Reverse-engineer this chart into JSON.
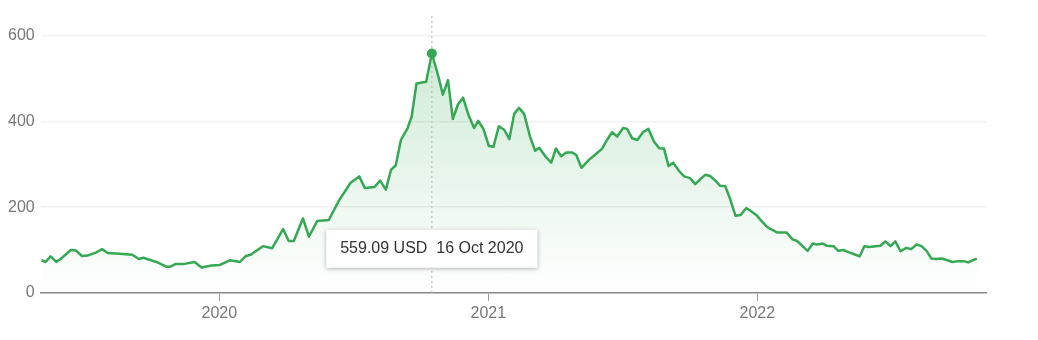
{
  "chart_data": {
    "type": "area",
    "x": [
      2019.339,
      2019.354,
      2019.373,
      2019.394,
      2019.41,
      2019.448,
      2019.467,
      2019.489,
      2019.51,
      2019.541,
      2019.564,
      2019.585,
      2019.616,
      2019.676,
      2019.701,
      2019.717,
      2019.766,
      2019.803,
      2019.818,
      2019.837,
      2019.865,
      2019.908,
      2019.934,
      2019.971,
      2020.002,
      2020.039,
      2020.077,
      2020.099,
      2020.117,
      2020.162,
      2020.196,
      2020.237,
      2020.258,
      2020.277,
      2020.311,
      2020.333,
      2020.364,
      2020.407,
      2020.445,
      2020.488,
      2020.52,
      2020.541,
      2020.576,
      2020.598,
      2020.619,
      2020.638,
      2020.656,
      2020.675,
      2020.7,
      2020.715,
      2020.733,
      2020.769,
      2020.79,
      2020.812,
      2020.831,
      2020.85,
      2020.868,
      2020.887,
      2020.906,
      2020.927,
      2020.947,
      2020.962,
      2020.981,
      2021.002,
      2021.019,
      2021.039,
      2021.059,
      2021.078,
      2021.096,
      2021.114,
      2021.133,
      2021.155,
      2021.174,
      2021.189,
      2021.213,
      2021.234,
      2021.251,
      2021.271,
      2021.29,
      2021.311,
      2021.327,
      2021.346,
      2021.373,
      2021.398,
      2021.423,
      2021.441,
      2021.46,
      2021.479,
      2021.501,
      2021.516,
      2021.535,
      2021.554,
      2021.575,
      2021.595,
      2021.616,
      2021.635,
      2021.653,
      2021.67,
      2021.687,
      2021.71,
      2021.728,
      2021.75,
      2021.769,
      2021.787,
      2021.807,
      2021.824,
      2021.844,
      2021.862,
      2021.881,
      2021.899,
      2021.919,
      2021.938,
      2021.959,
      2021.978,
      2021.996,
      2022.015,
      2022.036,
      2022.052,
      2022.073,
      2022.108,
      2022.131,
      2022.148,
      2022.168,
      2022.187,
      2022.206,
      2022.223,
      2022.243,
      2022.258,
      2022.283,
      2022.301,
      2022.32,
      2022.339,
      2022.36,
      2022.38,
      2022.398,
      2022.417,
      2022.439,
      2022.457,
      2022.476,
      2022.495,
      2022.513,
      2022.532,
      2022.554,
      2022.572,
      2022.592,
      2022.61,
      2022.629,
      2022.647,
      2022.664,
      2022.685,
      2022.707,
      2022.725,
      2022.746,
      2022.766,
      2022.784,
      2022.8,
      2022.816
    ],
    "series": [
      {
        "color": "#34a853",
        "values": [
          76,
          72,
          85,
          72,
          79,
          100,
          99,
          86,
          87,
          94,
          102,
          93,
          92,
          89,
          79,
          82,
          72,
          61,
          61,
          67,
          67,
          72,
          59,
          64,
          65,
          76,
          72,
          86,
          89,
          109,
          104,
          149,
          121,
          121,
          174,
          131,
          168,
          170,
          216,
          257,
          272,
          245,
          247,
          262,
          241,
          287,
          298,
          357,
          385,
          412,
          489,
          493,
          559.09,
          511,
          463,
          497,
          406,
          440,
          456,
          414,
          385,
          402,
          384,
          343,
          341,
          389,
          381,
          359,
          418,
          432,
          418,
          365,
          332,
          339,
          318,
          304,
          337,
          319,
          328,
          328,
          322,
          292,
          310,
          323,
          337,
          357,
          375,
          365,
          385,
          383,
          361,
          357,
          375,
          383,
          353,
          338,
          337,
          296,
          304,
          284,
          272,
          268,
          254,
          265,
          276,
          273,
          262,
          250,
          249,
          219,
          180,
          182,
          198,
          190,
          182,
          168,
          154,
          148,
          141,
          141,
          125,
          121,
          109,
          98,
          115,
          113,
          115,
          110,
          109,
          98,
          100,
          95,
          90,
          85,
          109,
          107,
          109,
          110,
          120,
          109,
          120,
          97,
          105,
          102,
          113,
          109,
          98,
          80,
          79,
          80,
          76,
          72,
          74,
          74,
          71,
          76,
          80
        ]
      }
    ],
    "xlim": [
      2019.336,
      2022.85
    ],
    "xticks": [
      2020,
      2021,
      2022
    ],
    "ylim": [
      0,
      600
    ],
    "yticks": [
      0,
      200,
      400,
      600
    ],
    "grid": "y",
    "legend": false,
    "marker": "none",
    "line_style": "solid",
    "ref_lines": [
      {
        "axis": "x",
        "value": 2020.79,
        "color": "#bdbdbd",
        "line_style": "dotted"
      }
    ],
    "annotations": [
      "559.09 USD  16 Oct 2020"
    ]
  }
}
